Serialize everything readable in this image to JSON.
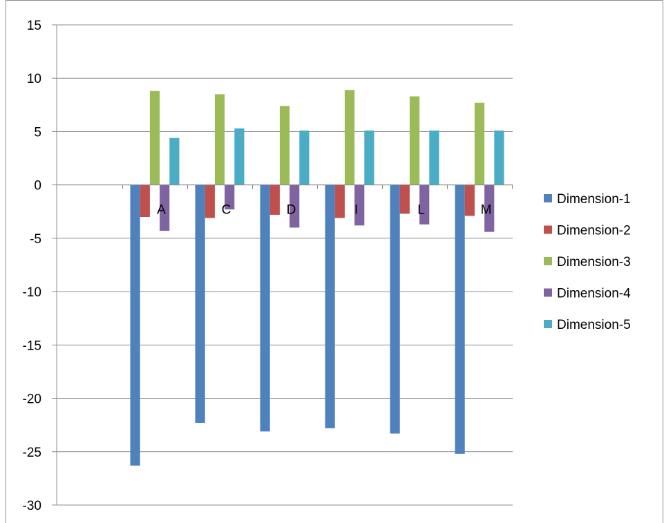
{
  "chart_data": {
    "type": "bar",
    "categories": [
      "A",
      "C",
      "D",
      "I",
      "L",
      "M"
    ],
    "series": [
      {
        "name": "Dimension-1",
        "color": "#4f81bd",
        "values": [
          -26.3,
          -22.3,
          -23.1,
          -22.8,
          -23.3,
          -25.2
        ]
      },
      {
        "name": "Dimension-2",
        "color": "#c0504d",
        "values": [
          -3.0,
          -3.1,
          -2.8,
          -3.1,
          -2.7,
          -2.9
        ]
      },
      {
        "name": "Dimension-3",
        "color": "#9bbb59",
        "values": [
          8.8,
          8.5,
          7.4,
          8.9,
          8.3,
          7.7
        ]
      },
      {
        "name": "Dimension-4",
        "color": "#8064a2",
        "values": [
          -4.3,
          -2.3,
          -4.0,
          -3.8,
          -3.7,
          -4.4
        ]
      },
      {
        "name": "Dimension-5",
        "color": "#4bacc6",
        "values": [
          4.4,
          5.3,
          5.1,
          5.1,
          5.1,
          5.1
        ]
      }
    ],
    "yticks": [
      "15",
      "10",
      "5",
      "0",
      "-5",
      "-10",
      "-15",
      "-20",
      "-25",
      "-30"
    ],
    "ylim": [
      -30,
      15
    ],
    "grid": true,
    "legend": "right",
    "title": "",
    "xlabel": "",
    "ylabel": ""
  }
}
